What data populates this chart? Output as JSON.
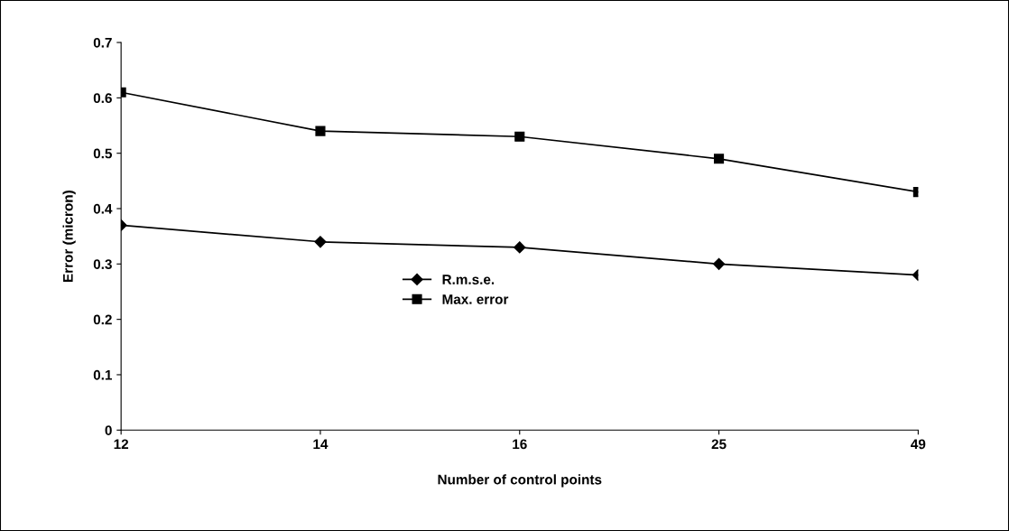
{
  "chart_data": {
    "type": "line",
    "xlabel": "Number of control points",
    "ylabel": "Error (micron)",
    "categories": [
      "12",
      "14",
      "16",
      "25",
      "49"
    ],
    "series": [
      {
        "name": "R.m.s.e.",
        "color": "#000000",
        "marker": "diamond",
        "values": [
          0.37,
          0.34,
          0.33,
          0.3,
          0.28
        ]
      },
      {
        "name": "Max. error",
        "color": "#000000",
        "marker": "square",
        "values": [
          0.61,
          0.54,
          0.53,
          0.49,
          0.43
        ]
      }
    ],
    "ylim": [
      0,
      0.7
    ],
    "yticks": [
      0,
      0.1,
      0.2,
      0.3,
      0.4,
      0.5,
      0.6,
      0.7
    ],
    "grid": false,
    "legend": "center"
  }
}
